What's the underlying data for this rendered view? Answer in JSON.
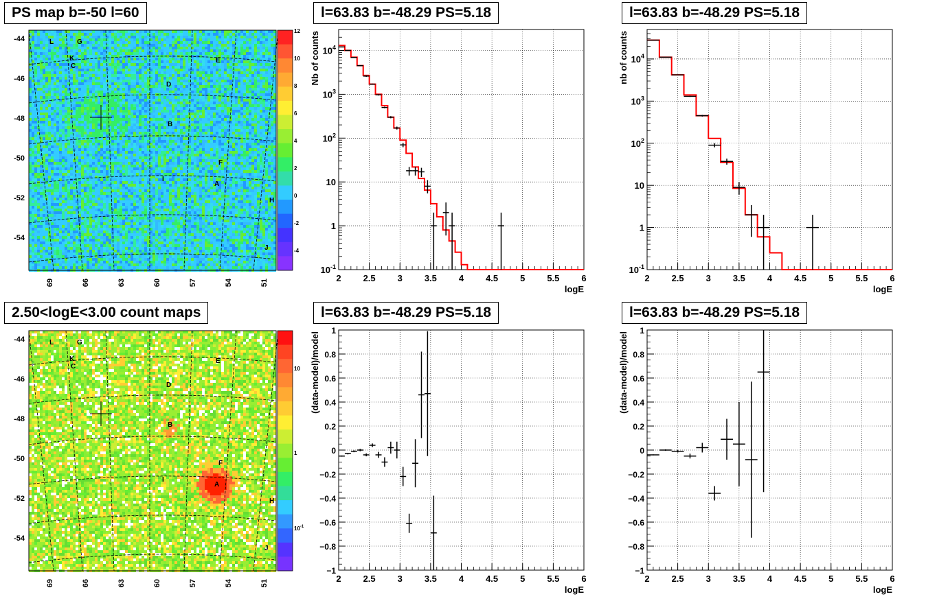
{
  "maps": [
    {
      "title": "PS map b=-50 l=60",
      "xticks": [
        "69",
        "66",
        "63",
        "60",
        "57",
        "54",
        "51"
      ],
      "yticks": [
        "-44",
        "-46",
        "-48",
        "-50",
        "-52",
        "-54"
      ],
      "colorbar_labels": [
        "12",
        "10",
        "8",
        "6",
        "4",
        "2",
        "0",
        "-2",
        "-4"
      ],
      "source_labels": [
        "L",
        "G",
        "K",
        "C",
        "E",
        "D",
        "B",
        "F",
        "I",
        "A",
        "H",
        "J"
      ],
      "colors": {
        "background": "#33ccff",
        "blob": "#33ee66"
      }
    },
    {
      "title": "2.50<logE<3.00 count maps",
      "xticks": [
        "69",
        "66",
        "63",
        "60",
        "57",
        "54",
        "51"
      ],
      "yticks": [
        "-44",
        "-46",
        "-48",
        "-50",
        "-52",
        "-54"
      ],
      "colorbar_labels": [
        "10",
        "1",
        "10^-1"
      ],
      "source_labels": [
        "L",
        "G",
        "K",
        "C",
        "E",
        "D",
        "B",
        "F",
        "I",
        "A",
        "H",
        "J"
      ],
      "colors": {
        "background": "#99ee33",
        "hot": "#ff3300"
      }
    }
  ],
  "chart_data": [
    {
      "type": "line",
      "title": "l=63.83 b=-48.29 PS=5.18",
      "xlabel": "logE",
      "ylabel": "Nb of counts",
      "xlim": [
        2,
        6
      ],
      "ylim": [
        0.1,
        30000
      ],
      "log_y": true,
      "grid": true,
      "xticks": [
        "2",
        "2.5",
        "3",
        "3.5",
        "4",
        "4.5",
        "5",
        "5.5",
        "6"
      ],
      "yticks": [
        {
          "v": 10000,
          "base": "10",
          "exp": "4"
        },
        {
          "v": 1000,
          "base": "10",
          "exp": "3"
        },
        {
          "v": 100,
          "base": "10",
          "exp": "2"
        },
        {
          "v": 10,
          "base": "10",
          "exp": ""
        },
        {
          "v": 1,
          "base": "1",
          "exp": ""
        },
        {
          "v": 0.1,
          "base": "10",
          "exp": "-1"
        }
      ],
      "model": {
        "name": "model",
        "color": "#ff0000",
        "bin_width": 0.1,
        "edges": [
          2.0,
          2.1,
          2.2,
          2.3,
          2.4,
          2.5,
          2.6,
          2.7,
          2.8,
          2.9,
          3.0,
          3.1,
          3.2,
          3.3,
          3.4,
          3.5,
          3.6,
          3.7,
          3.8,
          3.9,
          4.0,
          4.1,
          6.0
        ],
        "values": [
          13000,
          10000,
          7000,
          4500,
          2700,
          1700,
          1000,
          550,
          300,
          170,
          90,
          45,
          22,
          12,
          6.5,
          3.2,
          1.6,
          0.8,
          0.45,
          0.25,
          0.13,
          0.1
        ]
      },
      "data": {
        "name": "data",
        "color": "#000000",
        "half_width": 0.05,
        "points": [
          {
            "x": 2.05,
            "y": 12000,
            "lo": 11800,
            "hi": 12200
          },
          {
            "x": 2.15,
            "y": 10000,
            "lo": 9800,
            "hi": 10200
          },
          {
            "x": 2.25,
            "y": 6900,
            "lo": 6750,
            "hi": 7050
          },
          {
            "x": 2.35,
            "y": 4500,
            "lo": 4400,
            "hi": 4600
          },
          {
            "x": 2.45,
            "y": 2600,
            "lo": 2500,
            "hi": 2700
          },
          {
            "x": 2.55,
            "y": 1700,
            "lo": 1650,
            "hi": 1750
          },
          {
            "x": 2.65,
            "y": 970,
            "lo": 935,
            "hi": 1005
          },
          {
            "x": 2.75,
            "y": 500,
            "lo": 478,
            "hi": 522
          },
          {
            "x": 2.85,
            "y": 300,
            "lo": 283,
            "hi": 317
          },
          {
            "x": 2.95,
            "y": 170,
            "lo": 157,
            "hi": 183
          },
          {
            "x": 3.05,
            "y": 70,
            "lo": 62,
            "hi": 78
          },
          {
            "x": 3.15,
            "y": 18,
            "lo": 14,
            "hi": 22
          },
          {
            "x": 3.25,
            "y": 18,
            "lo": 14,
            "hi": 22
          },
          {
            "x": 3.35,
            "y": 17,
            "lo": 13,
            "hi": 21
          },
          {
            "x": 3.45,
            "y": 8,
            "lo": 5.5,
            "hi": 11
          },
          {
            "x": 3.55,
            "y": 1,
            "lo": 0.1,
            "hi": 2
          },
          {
            "x": 3.75,
            "y": 2,
            "lo": 0.6,
            "hi": 3.4
          },
          {
            "x": 3.85,
            "y": 1,
            "lo": 0.1,
            "hi": 2
          },
          {
            "x": 4.65,
            "y": 1,
            "lo": 0.1,
            "hi": 2
          }
        ]
      }
    },
    {
      "type": "line",
      "title": "l=63.83 b=-48.29 PS=5.18",
      "xlabel": "logE",
      "ylabel": "nb of counts",
      "xlim": [
        2,
        6
      ],
      "ylim": [
        0.1,
        50000
      ],
      "log_y": true,
      "grid": true,
      "xticks": [
        "2",
        "2.5",
        "3",
        "3.5",
        "4",
        "4.5",
        "5",
        "5.5",
        "6"
      ],
      "yticks": [
        {
          "v": 10000,
          "base": "10",
          "exp": "4"
        },
        {
          "v": 1000,
          "base": "10",
          "exp": "3"
        },
        {
          "v": 100,
          "base": "10",
          "exp": "2"
        },
        {
          "v": 10,
          "base": "10",
          "exp": ""
        },
        {
          "v": 1,
          "base": "1",
          "exp": ""
        },
        {
          "v": 0.1,
          "base": "10",
          "exp": "-1"
        }
      ],
      "model": {
        "name": "model",
        "color": "#ff0000",
        "bin_width": 0.2,
        "edges": [
          2.0,
          2.2,
          2.4,
          2.6,
          2.8,
          3.0,
          3.2,
          3.4,
          3.6,
          3.8,
          4.0,
          4.2,
          6.0
        ],
        "values": [
          28000,
          11000,
          4200,
          1400,
          450,
          130,
          35,
          8.5,
          2.0,
          0.6,
          0.25,
          0.1
        ]
      },
      "data": {
        "name": "data",
        "color": "#000000",
        "half_width": 0.1,
        "points": [
          {
            "x": 2.1,
            "y": 28000,
            "lo": 27700,
            "hi": 28300
          },
          {
            "x": 2.3,
            "y": 11000,
            "lo": 10800,
            "hi": 11200
          },
          {
            "x": 2.5,
            "y": 4200,
            "lo": 4100,
            "hi": 4300
          },
          {
            "x": 2.7,
            "y": 1300,
            "lo": 1260,
            "hi": 1340
          },
          {
            "x": 2.9,
            "y": 450,
            "lo": 430,
            "hi": 470
          },
          {
            "x": 3.1,
            "y": 90,
            "lo": 80,
            "hi": 100
          },
          {
            "x": 3.3,
            "y": 37,
            "lo": 31,
            "hi": 43
          },
          {
            "x": 3.5,
            "y": 9,
            "lo": 6,
            "hi": 12
          },
          {
            "x": 3.7,
            "y": 2,
            "lo": 0.6,
            "hi": 3.4
          },
          {
            "x": 3.9,
            "y": 1,
            "lo": 0.1,
            "hi": 2
          },
          {
            "x": 4.7,
            "y": 1,
            "lo": 0.1,
            "hi": 2
          }
        ]
      }
    },
    {
      "type": "scatter",
      "title": "l=63.83 b=-48.29 PS=5.18",
      "xlabel": "logE",
      "ylabel": "(data-model)/model",
      "xlim": [
        2,
        6
      ],
      "ylim": [
        -1,
        1
      ],
      "grid": true,
      "xticks": [
        "2",
        "2.5",
        "3",
        "3.5",
        "4",
        "4.5",
        "5",
        "5.5",
        "6"
      ],
      "yticks": [
        "1",
        "0.8",
        "0.6",
        "0.4",
        "0.2",
        "0",
        "−0.2",
        "−0.4",
        "−0.6",
        "−0.8",
        "−1"
      ],
      "half_width": 0.05,
      "points": [
        {
          "x": 2.05,
          "y": -0.05,
          "err": 0.005
        },
        {
          "x": 2.15,
          "y": -0.03,
          "err": 0.006
        },
        {
          "x": 2.25,
          "y": -0.01,
          "err": 0.008
        },
        {
          "x": 2.35,
          "y": 0.0,
          "err": 0.01
        },
        {
          "x": 2.45,
          "y": -0.04,
          "err": 0.012
        },
        {
          "x": 2.55,
          "y": 0.04,
          "err": 0.015
        },
        {
          "x": 2.65,
          "y": -0.04,
          "err": 0.025
        },
        {
          "x": 2.75,
          "y": -0.1,
          "err": 0.04
        },
        {
          "x": 2.85,
          "y": 0.02,
          "err": 0.05
        },
        {
          "x": 2.95,
          "y": 0.0,
          "err": 0.07
        },
        {
          "x": 3.05,
          "y": -0.22,
          "err": 0.08
        },
        {
          "x": 3.15,
          "y": -0.61,
          "err": 0.08
        },
        {
          "x": 3.25,
          "y": -0.11,
          "err": 0.2
        },
        {
          "x": 3.35,
          "y": 0.46,
          "err": 0.36
        },
        {
          "x": 3.45,
          "y": 0.47,
          "err": 0.52
        },
        {
          "x": 3.55,
          "y": -0.69,
          "err": 0.31
        }
      ]
    },
    {
      "type": "scatter",
      "title": "l=63.83 b=-48.29 PS=5.18",
      "xlabel": "logE",
      "ylabel": "(data-model)/model",
      "xlim": [
        2,
        6
      ],
      "ylim": [
        -1,
        1
      ],
      "grid": true,
      "xticks": [
        "2",
        "2.5",
        "3",
        "3.5",
        "4",
        "4.5",
        "5",
        "5.5",
        "6"
      ],
      "yticks": [
        "1",
        "0.8",
        "0.6",
        "0.4",
        "0.2",
        "0",
        "−0.2",
        "−0.4",
        "−0.6",
        "−0.8",
        "−1"
      ],
      "half_width": 0.1,
      "points": [
        {
          "x": 2.1,
          "y": -0.04,
          "err": 0.004
        },
        {
          "x": 2.3,
          "y": 0.0,
          "err": 0.006
        },
        {
          "x": 2.5,
          "y": -0.01,
          "err": 0.01
        },
        {
          "x": 2.7,
          "y": -0.05,
          "err": 0.02
        },
        {
          "x": 2.9,
          "y": 0.02,
          "err": 0.04
        },
        {
          "x": 3.1,
          "y": -0.36,
          "err": 0.06
        },
        {
          "x": 3.3,
          "y": 0.09,
          "err": 0.17
        },
        {
          "x": 3.5,
          "y": 0.05,
          "err": 0.35
        },
        {
          "x": 3.7,
          "y": -0.08,
          "err": 0.65
        },
        {
          "x": 3.9,
          "y": 0.65,
          "err": 1.0
        }
      ]
    }
  ]
}
